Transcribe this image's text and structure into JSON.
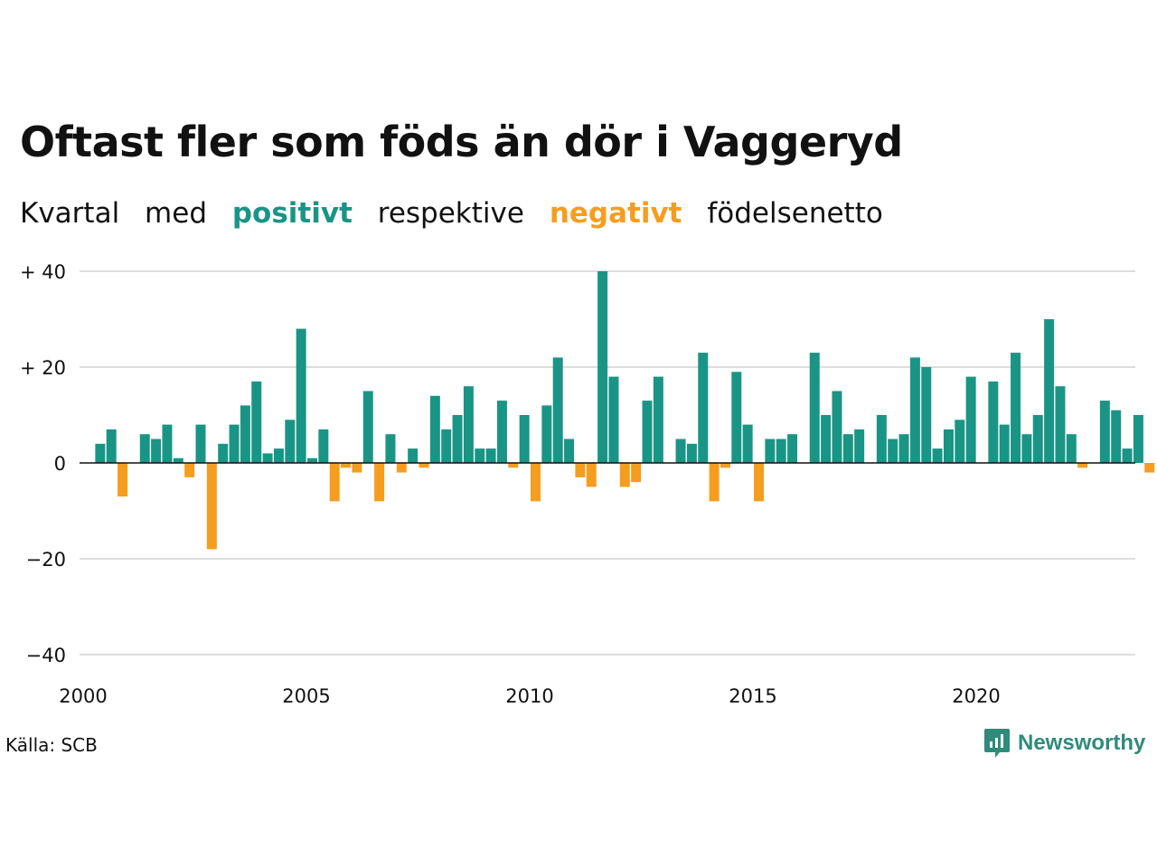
{
  "title": "Oftast fler som föds än dör i Vaggeryd",
  "subtitle": {
    "w1": "Kvartal",
    "w2": "med",
    "positive": "positivt",
    "w3": "respektive",
    "negative": "negativt",
    "w4": "födelsenetto"
  },
  "source": "Källa: SCB",
  "brand": "Newsworthy",
  "colors": {
    "positive": "#1a9585",
    "negative": "#f59d1f",
    "grid": "#dddddd",
    "brand": "#2f8b7b"
  },
  "chart_data": {
    "type": "bar",
    "start_year": 2000,
    "x_ticks": [
      "2000",
      "2005",
      "2010",
      "2015",
      "2020"
    ],
    "y_ticks": [
      "+ 40",
      "+ 20",
      "0",
      "−20",
      "−40"
    ],
    "ylim": [
      -40,
      40
    ],
    "grid": true,
    "values": [
      null,
      4,
      7,
      -7,
      null,
      6,
      5,
      8,
      1,
      -3,
      8,
      -18,
      4,
      8,
      12,
      17,
      2,
      3,
      9,
      28,
      1,
      7,
      -8,
      -1,
      -2,
      15,
      -8,
      6,
      -2,
      3,
      -1,
      14,
      7,
      10,
      16,
      3,
      3,
      13,
      -1,
      10,
      -8,
      12,
      22,
      5,
      -3,
      -5,
      40,
      18,
      -5,
      -4,
      13,
      18,
      null,
      5,
      4,
      23,
      -8,
      -1,
      19,
      8,
      -8,
      5,
      5,
      6,
      null,
      23,
      10,
      15,
      6,
      7,
      null,
      10,
      5,
      6,
      22,
      20,
      3,
      7,
      9,
      18,
      null,
      17,
      8,
      23,
      6,
      10,
      30,
      16,
      6,
      -1,
      null,
      13,
      11,
      3,
      10,
      -2
    ]
  }
}
